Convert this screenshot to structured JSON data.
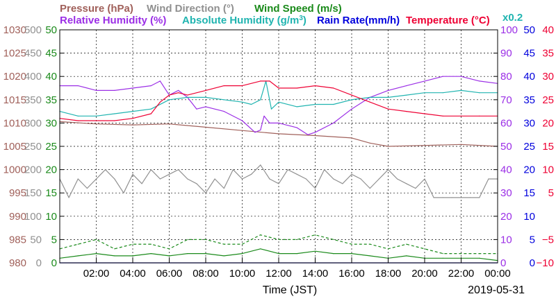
{
  "chart_data": {
    "type": "line",
    "date_label": "2019-05-31",
    "xlabel": "Time (JST)",
    "x_ticks": [
      "02:00",
      "04:00",
      "06:00",
      "08:00",
      "10:00",
      "12:00",
      "14:00",
      "16:00",
      "18:00",
      "20:00",
      "22:00",
      "00:00"
    ],
    "x_range_hours": [
      0,
      24
    ],
    "grid": true,
    "legend": [
      {
        "label": "Pressure (hPa)",
        "color": "#a0605a"
      },
      {
        "label": "Wind Direction (°)",
        "color": "#909090"
      },
      {
        "label": "Wind Speed (m/s)",
        "color": "#1a8a1a"
      },
      {
        "label": "Relative Humidity (%)",
        "color": "#9b2ee6"
      },
      {
        "label": "Absolute Humidity (g/m",
        "sup": "3",
        "close": ")",
        "color": "#20b4b0"
      },
      {
        "label": "Rain Rate(mm/h)",
        "color": "#0000dd"
      },
      {
        "label": "Temperature (°C)",
        "color": "#ee0033"
      }
    ],
    "abs_humidity_scale_note": "x0.2",
    "axes": {
      "pressure": {
        "color": "#a0605a",
        "range": [
          980,
          1030
        ],
        "ticks": [
          "1030",
          "1025",
          "1020",
          "1015",
          "1010",
          "1005",
          "1000",
          "995",
          "990",
          "985",
          "980"
        ]
      },
      "wind_direction": {
        "color": "#909090",
        "range": [
          0,
          500
        ],
        "ticks": [
          "500",
          "450",
          "400",
          "350",
          "300",
          "250",
          "200",
          "150",
          "100",
          "50",
          "0"
        ]
      },
      "wind_speed": {
        "color": "#1a8a1a",
        "range": [
          0,
          50
        ],
        "ticks": [
          "50",
          "45",
          "40",
          "35",
          "30",
          "25",
          "20",
          "15",
          "10",
          "5",
          "0"
        ]
      },
      "humidity": {
        "color": "#9b2ee6",
        "range": [
          0,
          100
        ],
        "ticks": [
          "100",
          "90",
          "80",
          "70",
          "60",
          "50",
          "40",
          "30",
          "20",
          "10",
          "0"
        ]
      },
      "rain_rate": {
        "color": "#0000dd",
        "range": [
          0,
          50
        ],
        "ticks": [
          "50",
          "45",
          "40",
          "35",
          "30",
          "25",
          "20",
          "15",
          "10",
          "5",
          "0"
        ]
      },
      "temperature": {
        "color": "#ee0033",
        "range": [
          -10,
          40
        ],
        "ticks": [
          "40",
          "35",
          "30",
          "25",
          "20",
          "15",
          "10",
          "5",
          "−5",
          "−10"
        ]
      }
    },
    "series": [
      {
        "name": "Pressure (hPa)",
        "color": "#a0605a",
        "axis": "pressure",
        "style": "solid",
        "x": [
          0,
          2,
          4,
          6,
          8,
          10,
          12,
          14,
          16,
          17,
          18,
          20,
          22,
          24
        ],
        "y": [
          1010.3,
          1009.8,
          1009.6,
          1009.8,
          1009.1,
          1008.4,
          1007.7,
          1007.3,
          1006.8,
          1005.7,
          1005.0,
          1005.2,
          1005.4,
          1005.0
        ]
      },
      {
        "name": "Wind Direction (°)",
        "color": "#909090",
        "axis": "wind_direction",
        "style": "solid",
        "x": [
          0,
          0.5,
          1,
          1.5,
          2,
          2.5,
          3,
          3.5,
          4,
          4.5,
          5,
          5.5,
          6,
          6.5,
          7,
          7.5,
          8,
          8.5,
          9,
          9.5,
          10,
          10.5,
          11,
          11.5,
          12,
          12.5,
          13,
          13.5,
          14,
          14.5,
          15,
          15.5,
          16,
          16.5,
          17,
          17.5,
          18,
          18.5,
          19,
          19.5,
          20,
          20.5,
          21,
          21.5,
          22,
          22.5,
          23,
          23.5,
          24
        ],
        "y": [
          180,
          140,
          180,
          160,
          180,
          200,
          180,
          150,
          190,
          170,
          200,
          180,
          190,
          200,
          180,
          170,
          150,
          180,
          160,
          200,
          180,
          190,
          210,
          180,
          170,
          200,
          190,
          180,
          160,
          200,
          180,
          170,
          190,
          180,
          160,
          180,
          200,
          180,
          170,
          160,
          180,
          140,
          140,
          140,
          140,
          140,
          140,
          180,
          180
        ]
      },
      {
        "name": "Wind Speed (m/s) instantaneous",
        "color": "#1a8a1a",
        "axis": "wind_speed",
        "style": "dashed",
        "x": [
          0,
          1,
          2,
          3,
          4,
          5,
          6,
          7,
          8,
          9,
          10,
          11,
          12,
          13,
          14,
          15,
          16,
          17,
          18,
          19,
          20,
          21,
          22,
          23,
          24
        ],
        "y": [
          3,
          4,
          5,
          3,
          4,
          4,
          3,
          5,
          5,
          4,
          4,
          6,
          5,
          5,
          6,
          5,
          4,
          4,
          3,
          4,
          3,
          2,
          2,
          2,
          2
        ]
      },
      {
        "name": "Wind Speed (m/s) mean",
        "color": "#1a8a1a",
        "axis": "wind_speed",
        "style": "solid",
        "x": [
          0,
          1,
          2,
          3,
          4,
          5,
          6,
          7,
          8,
          9,
          10,
          11,
          12,
          13,
          14,
          15,
          16,
          17,
          18,
          19,
          20,
          21,
          22,
          23,
          24
        ],
        "y": [
          1,
          1.5,
          2,
          1.5,
          1.5,
          2,
          1.5,
          2,
          2,
          1.5,
          2,
          3,
          2,
          2,
          2.5,
          2,
          2,
          1.5,
          1,
          1.5,
          1,
          1,
          1,
          1,
          0.5
        ]
      },
      {
        "name": "Relative Humidity (%)",
        "color": "#9b2ee6",
        "axis": "humidity",
        "style": "solid",
        "x": [
          0,
          1,
          2,
          3,
          4,
          5,
          5.5,
          6,
          6.5,
          7,
          7.5,
          8,
          9,
          10,
          10.7,
          11,
          11.2,
          11.5,
          12,
          13,
          13.6,
          14,
          15,
          16,
          17,
          18,
          19,
          20,
          21,
          22,
          23,
          24
        ],
        "y": [
          76,
          76,
          74,
          74,
          75,
          76,
          78,
          72,
          74,
          71,
          66,
          67,
          65,
          61,
          56,
          57,
          63,
          60,
          60,
          58,
          55,
          56,
          60,
          66,
          71,
          74,
          76,
          78,
          80,
          80,
          78,
          77
        ]
      },
      {
        "name": "Absolute Humidity (g/m³) x0.2",
        "color": "#20b4b0",
        "axis": "humidity",
        "style": "solid",
        "x": [
          0,
          1,
          2,
          3,
          4,
          5,
          6,
          7,
          8,
          9,
          10,
          10.5,
          11,
          11.3,
          11.6,
          12,
          13,
          14,
          15,
          16,
          17,
          18,
          19,
          20,
          21,
          22,
          23,
          24
        ],
        "y": [
          65,
          63,
          63,
          64,
          65,
          66,
          70,
          71,
          71,
          70,
          69,
          68,
          70,
          78,
          66,
          69,
          67,
          68,
          68,
          70,
          71,
          71,
          72,
          73,
          73,
          74,
          73,
          73
        ]
      },
      {
        "name": "Rain Rate(mm/h)",
        "color": "#0000dd",
        "axis": "rain_rate",
        "style": "solid",
        "x": [
          0,
          24
        ],
        "y": [
          0,
          0
        ]
      },
      {
        "name": "Temperature (°C)",
        "color": "#ee0033",
        "axis": "temperature",
        "style": "solid",
        "x": [
          0,
          1,
          2,
          3,
          4,
          5,
          5.5,
          6,
          6.5,
          7,
          8,
          9,
          10,
          11,
          11.5,
          12,
          13,
          14,
          15,
          16,
          17,
          18,
          19,
          20,
          21,
          22,
          23,
          24
        ],
        "y": [
          21,
          20.5,
          20.5,
          20.5,
          21,
          22,
          24.5,
          26,
          26.5,
          26,
          27,
          28,
          28,
          29,
          29,
          27.5,
          27.5,
          28,
          27.5,
          26,
          24.5,
          23,
          22.5,
          22,
          21.5,
          21.5,
          21.5,
          21.5
        ]
      }
    ]
  }
}
